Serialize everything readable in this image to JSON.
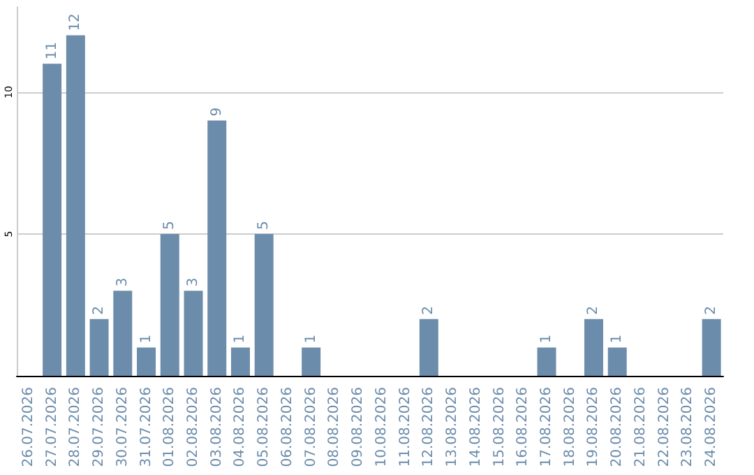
{
  "chart_data": {
    "type": "bar",
    "categories": [
      "26.07.2026",
      "27.07.2026",
      "28.07.2026",
      "29.07.2026",
      "30.07.2026",
      "31.07.2026",
      "01.08.2026",
      "02.08.2026",
      "03.08.2026",
      "04.08.2026",
      "05.08.2026",
      "06.08.2026",
      "07.08.2026",
      "08.08.2026",
      "09.08.2026",
      "10.08.2026",
      "11.08.2026",
      "12.08.2026",
      "13.08.2026",
      "14.08.2026",
      "15.08.2026",
      "16.08.2026",
      "17.08.2026",
      "18.08.2026",
      "19.08.2026",
      "20.08.2026",
      "21.08.2026",
      "22.08.2026",
      "23.08.2026",
      "24.08.2026"
    ],
    "values": [
      0,
      11,
      12,
      2,
      3,
      1,
      5,
      3,
      9,
      1,
      5,
      0,
      1,
      0,
      0,
      0,
      0,
      2,
      0,
      0,
      0,
      0,
      1,
      0,
      2,
      1,
      0,
      0,
      0,
      2
    ],
    "value_labels": [
      null,
      "11",
      "12",
      "2",
      "3",
      "1",
      "5",
      "3",
      "9",
      "1",
      "5",
      null,
      "1",
      null,
      null,
      null,
      null,
      "2",
      null,
      null,
      null,
      null,
      "1",
      null,
      "2",
      "1",
      null,
      null,
      null,
      "2"
    ],
    "color": "#6c8cab",
    "ylim": [
      0,
      13
    ],
    "yticks": [
      5,
      10
    ],
    "grid": "y"
  }
}
